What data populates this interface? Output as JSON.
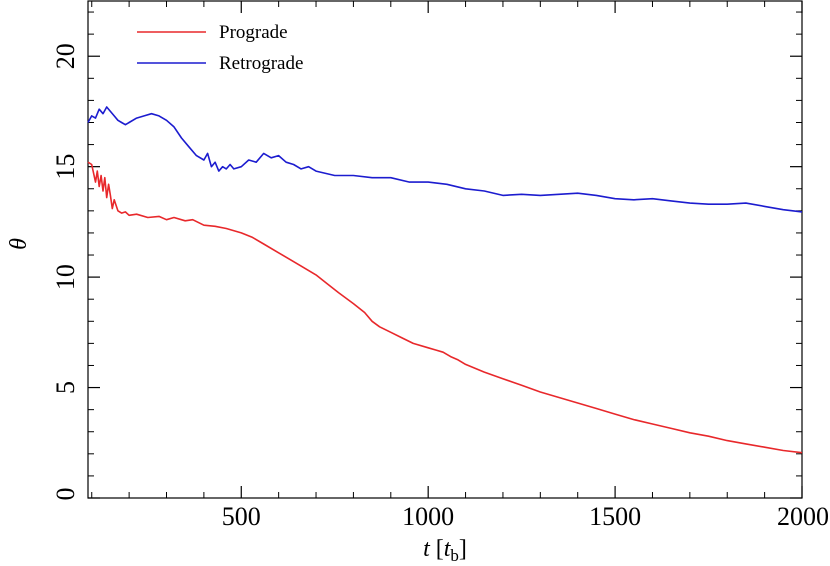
{
  "chart_data": {
    "type": "line",
    "title": "",
    "xlabel": {
      "main": "t",
      "open": " [",
      "unit": "t",
      "unit_sub": "b",
      "close": "]"
    },
    "ylabel": "θ",
    "xlim": [
      90,
      2000
    ],
    "ylim": [
      0,
      22.5
    ],
    "x_ticks": [
      500,
      1000,
      1500,
      2000
    ],
    "x_tick_labels": [
      "500",
      "1000",
      "1500",
      "2000"
    ],
    "x_minor_step": 100,
    "y_ticks": [
      0,
      5,
      10,
      15,
      20
    ],
    "y_tick_labels": [
      "0",
      "5",
      "10",
      "15",
      "20"
    ],
    "y_minor_step": 1,
    "grid": false,
    "legend_position": "top-left",
    "series": [
      {
        "name": "Prograde",
        "color": "#e8282b",
        "x": [
          90,
          100,
          110,
          115,
          120,
          125,
          130,
          135,
          140,
          145,
          150,
          155,
          160,
          170,
          180,
          190,
          200,
          220,
          250,
          280,
          300,
          320,
          350,
          370,
          400,
          430,
          460,
          500,
          530,
          560,
          600,
          630,
          660,
          700,
          730,
          760,
          800,
          830,
          850,
          870,
          900,
          930,
          960,
          1000,
          1020,
          1040,
          1060,
          1080,
          1100,
          1150,
          1200,
          1250,
          1300,
          1350,
          1400,
          1450,
          1500,
          1550,
          1600,
          1650,
          1700,
          1750,
          1800,
          1850,
          1900,
          1950,
          2000
        ],
        "y": [
          15.2,
          15.1,
          14.3,
          14.8,
          14.1,
          14.6,
          13.9,
          14.5,
          13.6,
          14.2,
          13.7,
          13.1,
          13.5,
          13.0,
          12.9,
          12.95,
          12.8,
          12.85,
          12.7,
          12.75,
          12.6,
          12.7,
          12.55,
          12.6,
          12.35,
          12.3,
          12.2,
          12.0,
          11.8,
          11.5,
          11.1,
          10.8,
          10.5,
          10.1,
          9.7,
          9.3,
          8.8,
          8.4,
          8.0,
          7.75,
          7.5,
          7.25,
          7.0,
          6.8,
          6.7,
          6.6,
          6.4,
          6.25,
          6.05,
          5.7,
          5.4,
          5.1,
          4.8,
          4.55,
          4.3,
          4.05,
          3.8,
          3.55,
          3.35,
          3.15,
          2.95,
          2.8,
          2.6,
          2.45,
          2.3,
          2.15,
          2.05
        ]
      },
      {
        "name": "Retrograde",
        "color": "#1c1ccf",
        "x": [
          90,
          100,
          110,
          120,
          130,
          140,
          150,
          160,
          170,
          180,
          190,
          200,
          220,
          240,
          260,
          280,
          300,
          320,
          340,
          360,
          380,
          400,
          410,
          420,
          430,
          440,
          450,
          460,
          470,
          480,
          500,
          520,
          540,
          560,
          580,
          600,
          620,
          640,
          660,
          680,
          700,
          750,
          800,
          850,
          900,
          950,
          1000,
          1050,
          1100,
          1150,
          1200,
          1250,
          1300,
          1350,
          1400,
          1450,
          1500,
          1550,
          1600,
          1650,
          1700,
          1750,
          1800,
          1850,
          1900,
          1950,
          2000
        ],
        "y": [
          17.0,
          17.3,
          17.2,
          17.6,
          17.4,
          17.7,
          17.5,
          17.3,
          17.1,
          17.0,
          16.9,
          17.0,
          17.2,
          17.3,
          17.4,
          17.3,
          17.1,
          16.8,
          16.3,
          15.9,
          15.5,
          15.3,
          15.6,
          15.0,
          15.2,
          14.8,
          15.0,
          14.9,
          15.1,
          14.9,
          15.0,
          15.3,
          15.2,
          15.6,
          15.4,
          15.5,
          15.2,
          15.1,
          14.9,
          15.0,
          14.8,
          14.6,
          14.6,
          14.5,
          14.5,
          14.3,
          14.3,
          14.2,
          14.0,
          13.9,
          13.7,
          13.75,
          13.7,
          13.75,
          13.8,
          13.7,
          13.55,
          13.5,
          13.55,
          13.45,
          13.35,
          13.3,
          13.3,
          13.35,
          13.2,
          13.05,
          12.95
        ]
      }
    ]
  }
}
